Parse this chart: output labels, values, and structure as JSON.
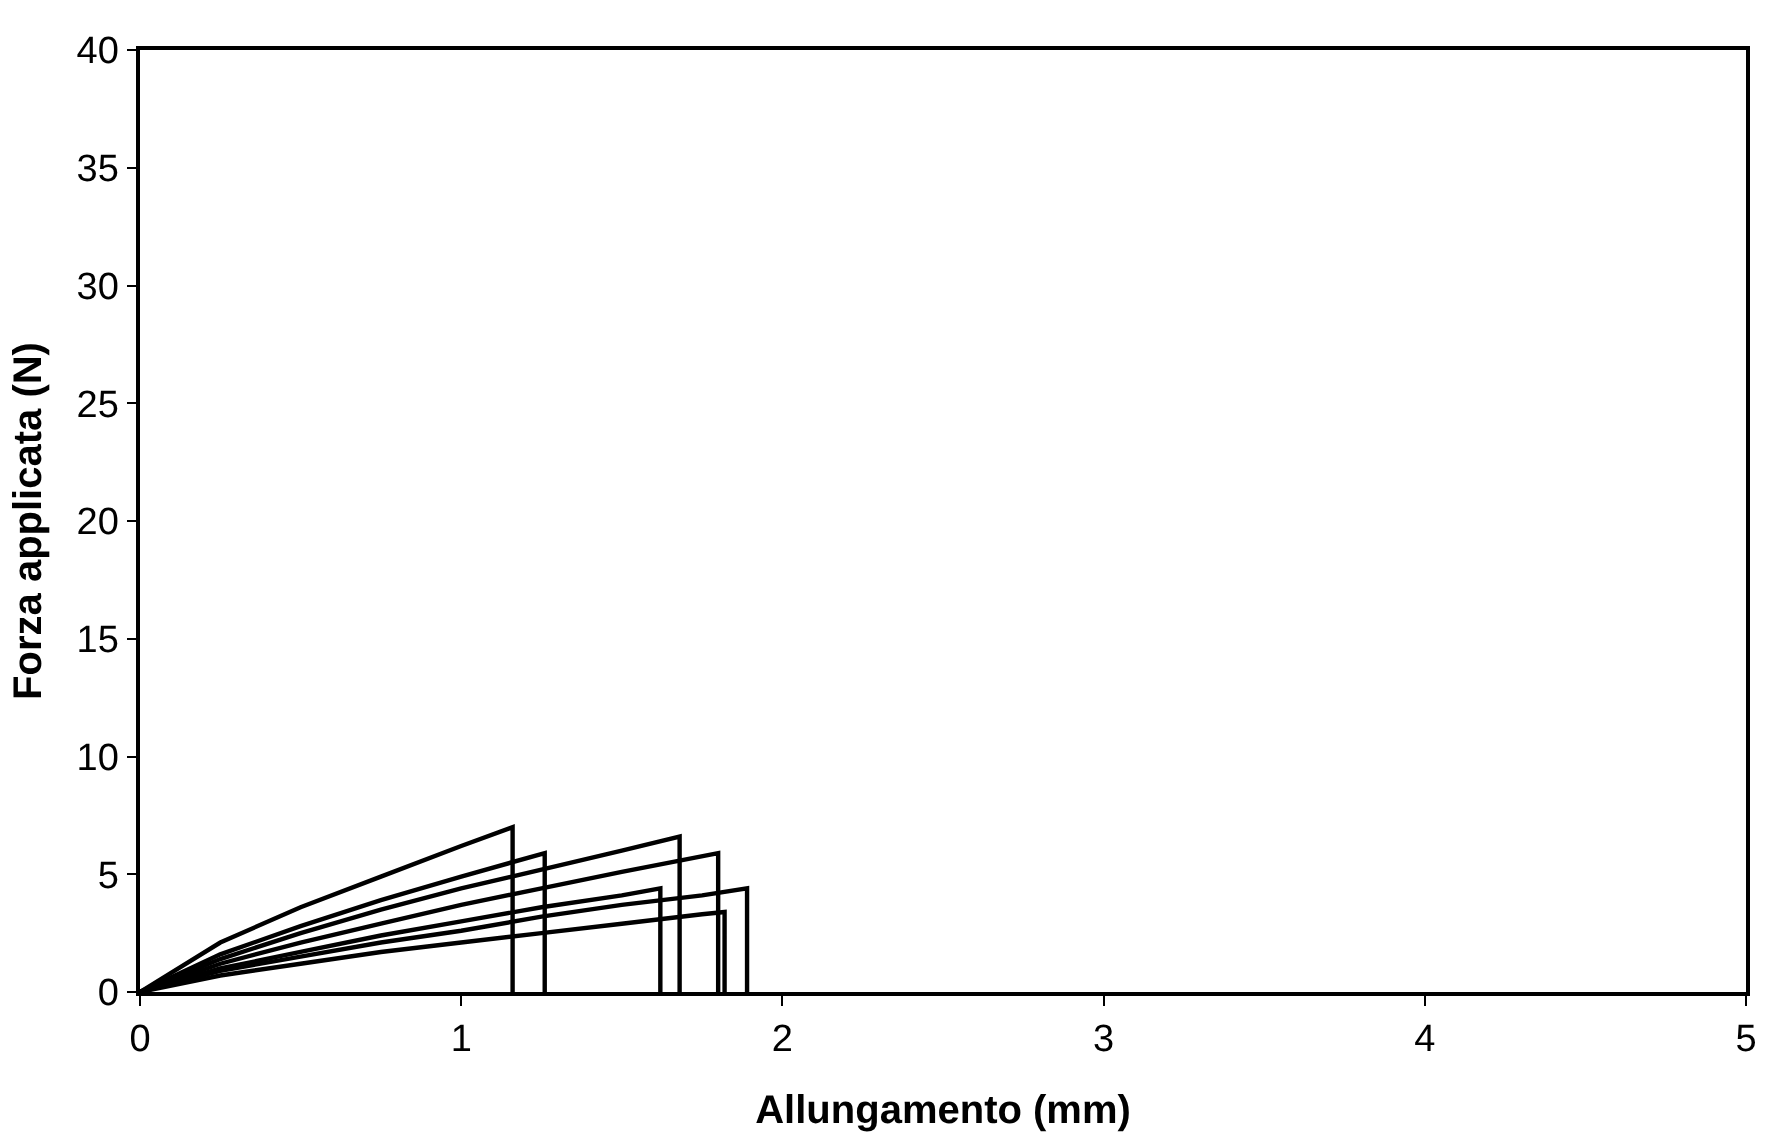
{
  "chart_data": {
    "type": "line",
    "xlabel": "Allungamento (mm)",
    "ylabel": "Forza applicata (N)",
    "xlim": [
      0,
      5
    ],
    "xticks": [
      0,
      1,
      2,
      3,
      4,
      5
    ],
    "ylim": [
      0,
      40
    ],
    "yticks": [
      0,
      5,
      10,
      15,
      20,
      25,
      30,
      35,
      40
    ],
    "grid": false,
    "marker": "none",
    "line_style": "solid",
    "series": [
      {
        "color": "#000000",
        "x": [
          0,
          0.25,
          0.5,
          0.75,
          1.0,
          1.16,
          1.16
        ],
        "values": [
          0,
          2.1,
          3.6,
          4.9,
          6.2,
          7.0,
          0
        ]
      },
      {
        "color": "#000000",
        "x": [
          0,
          0.25,
          0.5,
          0.75,
          1.0,
          1.26,
          1.26
        ],
        "values": [
          0,
          1.6,
          2.8,
          3.9,
          4.9,
          5.9,
          0
        ]
      },
      {
        "color": "#000000",
        "x": [
          0,
          0.25,
          0.5,
          0.75,
          1.0,
          1.25,
          1.5,
          1.68,
          1.68
        ],
        "values": [
          0,
          1.4,
          2.5,
          3.5,
          4.4,
          5.2,
          6.0,
          6.6,
          0
        ]
      },
      {
        "color": "#000000",
        "x": [
          0,
          0.25,
          0.5,
          0.75,
          1.0,
          1.25,
          1.5,
          1.8,
          1.8
        ],
        "values": [
          0,
          1.2,
          2.1,
          2.9,
          3.7,
          4.4,
          5.1,
          5.9,
          0
        ]
      },
      {
        "color": "#000000",
        "x": [
          0,
          0.25,
          0.5,
          0.75,
          1.0,
          1.25,
          1.5,
          1.62,
          1.62
        ],
        "values": [
          0,
          1.0,
          1.7,
          2.4,
          3.0,
          3.6,
          4.1,
          4.4,
          0
        ]
      },
      {
        "color": "#000000",
        "x": [
          0,
          0.25,
          0.5,
          0.75,
          1.0,
          1.25,
          1.5,
          1.75,
          1.89,
          1.89
        ],
        "values": [
          0,
          0.9,
          1.5,
          2.1,
          2.6,
          3.2,
          3.7,
          4.1,
          4.4,
          0
        ]
      },
      {
        "color": "#000000",
        "x": [
          0,
          0.25,
          0.5,
          0.75,
          1.0,
          1.25,
          1.5,
          1.75,
          1.82,
          1.82
        ],
        "values": [
          0,
          0.7,
          1.2,
          1.7,
          2.1,
          2.5,
          2.9,
          3.3,
          3.4,
          0
        ]
      }
    ]
  }
}
